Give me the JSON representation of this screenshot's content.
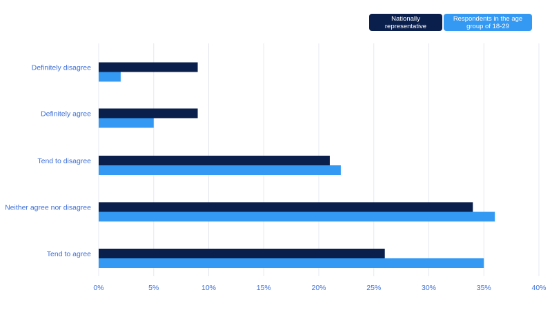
{
  "chart_data": {
    "type": "bar",
    "orientation": "horizontal",
    "categories": [
      "Definitely disagree",
      "Definitely agree",
      "Tend to disagree",
      "Neither agree nor disagree",
      "Tend to agree"
    ],
    "series": [
      {
        "name": "Nationally representative",
        "color": "#0b1f4d",
        "values": [
          9,
          9,
          21,
          34,
          26
        ]
      },
      {
        "name": "Respondents in the age group of 18-29",
        "color": "#3399f3",
        "values": [
          2,
          5,
          22,
          36,
          35
        ]
      }
    ],
    "x_ticks": [
      "0%",
      "5%",
      "10%",
      "15%",
      "20%",
      "25%",
      "30%",
      "35%",
      "40%"
    ],
    "xlim": [
      0,
      40
    ],
    "grid": true,
    "legend_position": "top-right",
    "label_color": "#3d6fd6",
    "grid_color": "#e6e8f0"
  }
}
